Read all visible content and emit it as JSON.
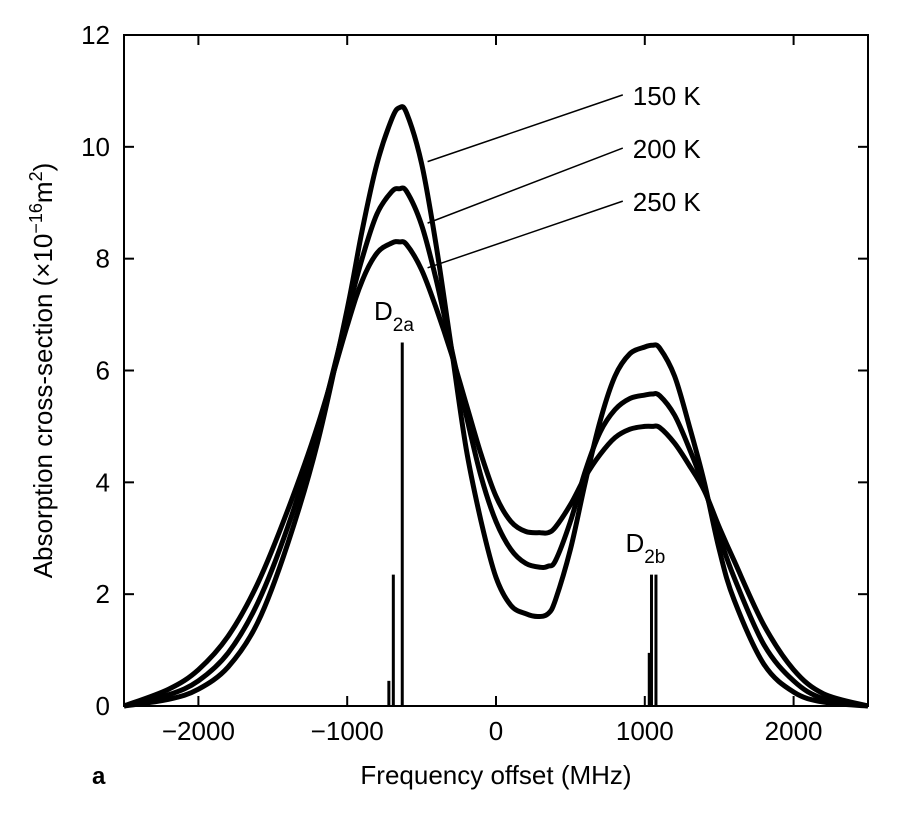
{
  "chart_data": {
    "type": "line",
    "panel_label": "a",
    "xlabel": "Frequency offset (MHz)",
    "ylabel": {
      "base": "Absorption cross-section (×10",
      "exp": "−16",
      "unit": "m",
      "unit_exp": "2",
      "close": ")"
    },
    "xlim": [
      -2500,
      2500
    ],
    "ylim": [
      0,
      12
    ],
    "xticks": [
      -2000,
      -1000,
      0,
      1000,
      2000
    ],
    "xtick_labels": [
      "−2000",
      "−1000",
      "0",
      "1000",
      "2000"
    ],
    "yticks": [
      0,
      2,
      4,
      6,
      8,
      10,
      12
    ],
    "ytick_labels": [
      "0",
      "2",
      "4",
      "6",
      "8",
      "10",
      "12"
    ],
    "grid": false,
    "series": [
      {
        "name": "150 K",
        "x": [
          -2500,
          -2200,
          -2000,
          -1800,
          -1600,
          -1400,
          -1200,
          -1000,
          -900,
          -800,
          -700,
          -650,
          -600,
          -500,
          -400,
          -300,
          -200,
          -100,
          0,
          100,
          200,
          280,
          350,
          400,
          500,
          600,
          700,
          800,
          900,
          1000,
          1050,
          1100,
          1200,
          1300,
          1400,
          1500,
          1600,
          1800,
          2000,
          2200,
          2500
        ],
        "y": [
          0.0,
          0.12,
          0.3,
          0.7,
          1.5,
          2.9,
          4.7,
          7.1,
          8.5,
          9.7,
          10.5,
          10.7,
          10.6,
          9.7,
          8.2,
          6.4,
          4.6,
          3.3,
          2.3,
          1.8,
          1.65,
          1.6,
          1.65,
          1.9,
          2.8,
          4.0,
          5.1,
          5.9,
          6.3,
          6.42,
          6.45,
          6.4,
          5.9,
          5.0,
          4.0,
          2.8,
          1.9,
          0.75,
          0.25,
          0.07,
          0.0
        ]
      },
      {
        "name": "200 K",
        "x": [
          -2500,
          -2200,
          -2000,
          -1800,
          -1600,
          -1400,
          -1200,
          -1000,
          -900,
          -800,
          -700,
          -650,
          -600,
          -500,
          -400,
          -300,
          -200,
          -100,
          0,
          100,
          200,
          300,
          350,
          400,
          500,
          600,
          700,
          800,
          900,
          1000,
          1050,
          1100,
          1200,
          1300,
          1400,
          1500,
          1600,
          1800,
          2000,
          2200,
          2500
        ],
        "y": [
          0.0,
          0.2,
          0.45,
          0.95,
          1.85,
          3.2,
          4.9,
          7.0,
          8.0,
          8.8,
          9.2,
          9.25,
          9.2,
          8.6,
          7.6,
          6.4,
          5.2,
          4.1,
          3.3,
          2.8,
          2.55,
          2.48,
          2.5,
          2.6,
          3.3,
          4.2,
          4.9,
          5.3,
          5.5,
          5.56,
          5.58,
          5.55,
          5.2,
          4.6,
          3.9,
          3.05,
          2.3,
          1.1,
          0.45,
          0.13,
          0.0
        ]
      },
      {
        "name": "250 K",
        "x": [
          -2500,
          -2200,
          -2000,
          -1800,
          -1600,
          -1400,
          -1200,
          -1000,
          -900,
          -800,
          -700,
          -650,
          -600,
          -500,
          -400,
          -300,
          -200,
          -100,
          0,
          100,
          200,
          300,
          350,
          400,
          500,
          600,
          700,
          800,
          900,
          1000,
          1050,
          1100,
          1200,
          1300,
          1400,
          1500,
          1600,
          1800,
          2000,
          2200,
          2500
        ],
        "y": [
          0.0,
          0.3,
          0.65,
          1.25,
          2.2,
          3.5,
          5.0,
          6.8,
          7.6,
          8.1,
          8.28,
          8.3,
          8.25,
          7.8,
          7.1,
          6.3,
          5.4,
          4.5,
          3.75,
          3.3,
          3.12,
          3.1,
          3.1,
          3.2,
          3.6,
          4.1,
          4.5,
          4.8,
          4.95,
          5.0,
          5.0,
          4.98,
          4.7,
          4.3,
          3.85,
          3.2,
          2.6,
          1.45,
          0.65,
          0.22,
          0.0
        ]
      }
    ],
    "sticks": [
      {
        "x": -720,
        "y": 0.45
      },
      {
        "x": -690,
        "y": 2.35
      },
      {
        "x": -630,
        "y": 6.5
      },
      {
        "x": 1030,
        "y": 0.95
      },
      {
        "x": 1045,
        "y": 2.35
      },
      {
        "x": 1075,
        "y": 2.35
      }
    ],
    "annotations": [
      {
        "text": "150 K",
        "series": 0,
        "point_x": -500,
        "label_x": 1000,
        "label_y": 10.75
      },
      {
        "text": "200 K",
        "series": 1,
        "point_x": -500,
        "label_x": 1000,
        "label_y": 9.8
      },
      {
        "text": "250 K",
        "series": 2,
        "point_x": -500,
        "label_x": 1000,
        "label_y": 8.85
      }
    ],
    "peak_labels": [
      {
        "base": "D",
        "sub": "2a",
        "x": -820,
        "y": 6.9
      },
      {
        "base": "D",
        "sub": "2b",
        "x": 870,
        "y": 2.75
      }
    ]
  }
}
